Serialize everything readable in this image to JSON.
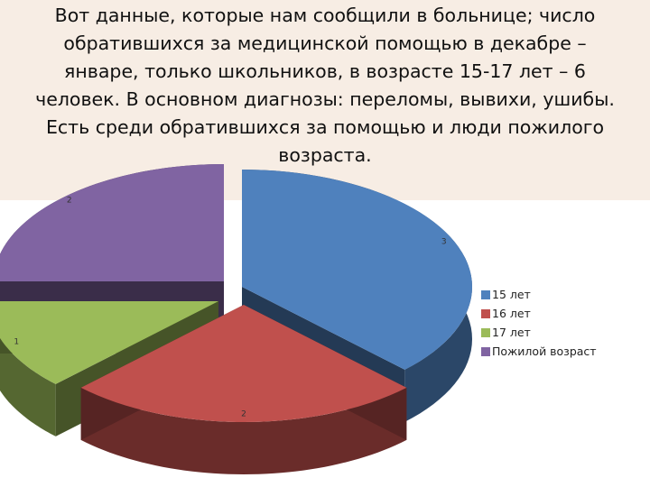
{
  "slide": {
    "text": "Вот  данные, которые нам сообщили в больнице; число\nобратившихся за медицинской помощью в декабре –\nянваре, только школьников, в возрасте 15-17 лет – 6\nчеловек. В основном диагнозы: переломы, вывихи, ушибы.\nЕсть среди обратившихся за помощью и люди пожилого\nвозраста."
  },
  "chart_data": {
    "type": "pie",
    "style": "3d-exploded",
    "title": "",
    "legend_position": "right",
    "categories": [
      "15 лет",
      "16 лет",
      "17 лет",
      "Пожилой возраст"
    ],
    "values": [
      3,
      2,
      1,
      2
    ],
    "data_labels": [
      "3",
      "2",
      "1",
      "2"
    ],
    "colors": [
      "#4f81bd",
      "#c0504d",
      "#9bbb59",
      "#8064a2"
    ]
  }
}
